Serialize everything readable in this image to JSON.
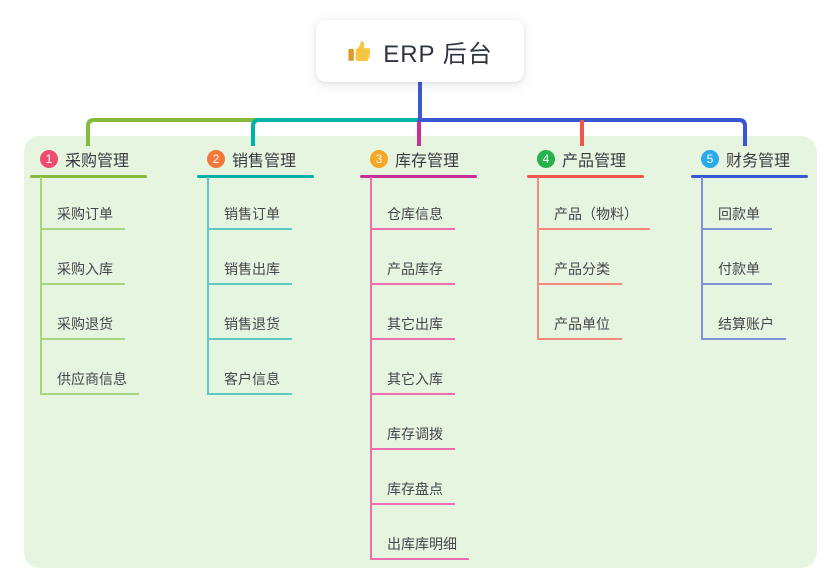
{
  "theme": {
    "canvas_background": "#ffffff",
    "container_background": "#e6f5df",
    "root_connector_color": "#3c58d4",
    "title_text_color": "#3a3a44",
    "child_text_color": "#45454d"
  },
  "root": {
    "label": "ERP 后台",
    "icon": "thumbs-up-icon"
  },
  "branches": [
    {
      "index": "1",
      "label": "采购管理",
      "badge_color": "#ee4d6d",
      "line_color": "#86bb3f",
      "child_line_color": "#a9d57f",
      "children": [
        "采购订单",
        "采购入库",
        "采购退货",
        "供应商信息"
      ]
    },
    {
      "index": "2",
      "label": "销售管理",
      "badge_color": "#f4773c",
      "line_color": "#00b1a8",
      "child_line_color": "#5dcbc1",
      "children": [
        "销售订单",
        "销售出库",
        "销售退货",
        "客户信息"
      ]
    },
    {
      "index": "3",
      "label": "库存管理",
      "badge_color": "#f7a626",
      "line_color": "#c93098",
      "child_line_color": "#ef6fae",
      "children": [
        "仓库信息",
        "产品库存",
        "其它出库",
        "其它入库",
        "库存调拨",
        "库存盘点",
        "出库库明细"
      ]
    },
    {
      "index": "4",
      "label": "产品管理",
      "badge_color": "#28b24c",
      "line_color": "#f1564c",
      "child_line_color": "#f48b81",
      "children": [
        "产品（物料）",
        "产品分类",
        "产品单位"
      ]
    },
    {
      "index": "5",
      "label": "财务管理",
      "badge_color": "#2aabe8",
      "line_color": "#3a57d3",
      "child_line_color": "#8092d5",
      "children": [
        "回款单",
        "付款单",
        "结算账户"
      ]
    }
  ]
}
